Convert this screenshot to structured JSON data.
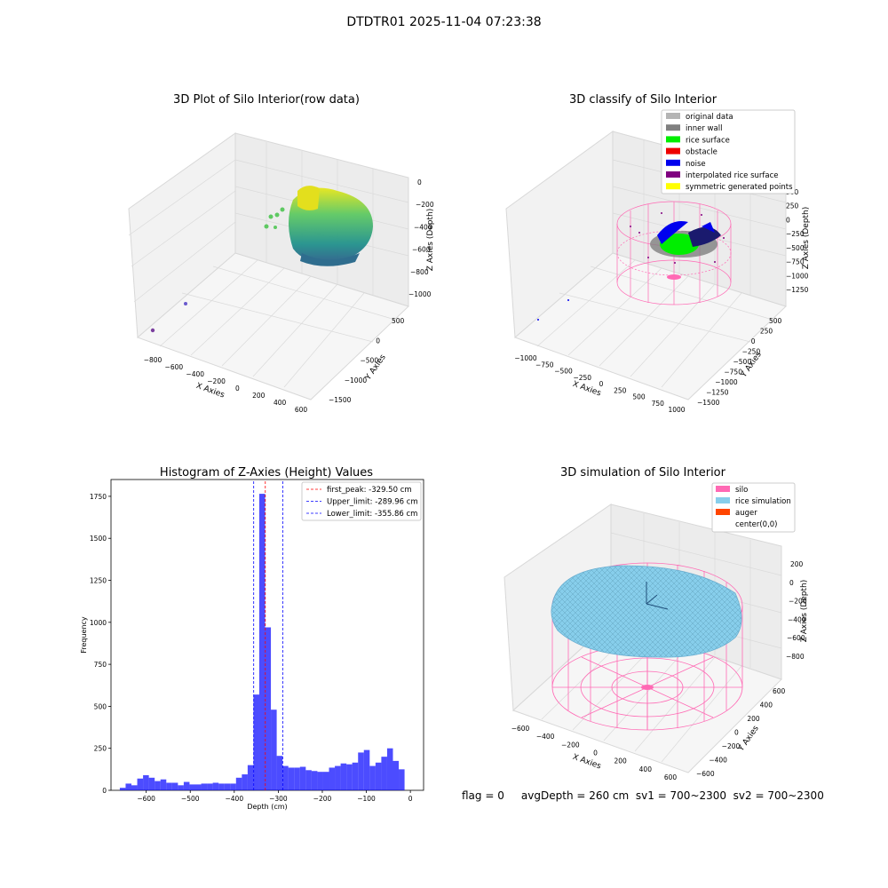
{
  "suptitle": "DTDTR01 2025-11-04 07:23:38",
  "status_text": "flag = 0     avgDepth = 260 cm  sv1 = 700~2300  sv2 = 700~2300",
  "panel_raw": {
    "title": "3D Plot of Silo Interior(row data)",
    "xlabel": "X Axies",
    "ylabel": "Y Axies",
    "zlabel": "Z Axies (Depth)",
    "xticks": [
      "−800",
      "−600",
      "−400",
      "−200",
      "0",
      "200",
      "400",
      "600"
    ],
    "yticks": [
      "500",
      "0",
      "−500",
      "−1000",
      "−1500"
    ],
    "zticks": [
      "0",
      "−200",
      "−400",
      "−600",
      "−800",
      "−1000"
    ]
  },
  "panel_classify": {
    "title": "3D classify of Silo Interior",
    "xlabel": "X Axies",
    "ylabel": "Y Axies",
    "zlabel": "Z Axies (Depth)",
    "xticks": [
      "−1000",
      "−750",
      "−500",
      "−250",
      "0",
      "250",
      "500",
      "750",
      "1000"
    ],
    "yticks": [
      "500",
      "250",
      "0",
      "−250",
      "−500",
      "−750",
      "−1000",
      "−1250",
      "−1500"
    ],
    "zticks": [
      "500",
      "250",
      "0",
      "−250",
      "−500",
      "−750",
      "−1000",
      "−1250"
    ],
    "legend": [
      {
        "label": "original data",
        "color": "#b4b4b4"
      },
      {
        "label": "inner wall",
        "color": "#808080"
      },
      {
        "label": "rice surface",
        "color": "#00ee00"
      },
      {
        "label": "obstacle",
        "color": "#ee0000"
      },
      {
        "label": "noise",
        "color": "#0000ee"
      },
      {
        "label": "interpolated rice surface",
        "color": "#800080"
      },
      {
        "label": "symmetric generated points",
        "color": "#ffff00"
      }
    ]
  },
  "panel_sim": {
    "title": "3D simulation of Silo Interior",
    "xlabel": "X Axies",
    "ylabel": "Y Axies",
    "zlabel": "Z Axies (Depth)",
    "xticks": [
      "−600",
      "−400",
      "−200",
      "0",
      "200",
      "400",
      "600"
    ],
    "yticks": [
      "600",
      "400",
      "200",
      "0",
      "−200",
      "−400",
      "−600"
    ],
    "zticks": [
      "200",
      "0",
      "−200",
      "−400",
      "−600",
      "−800"
    ],
    "legend": [
      {
        "label": "silo",
        "color": "#ff69b4"
      },
      {
        "label": "rice simulation",
        "color": "#87ceeb"
      },
      {
        "label": "auger",
        "color": "#ff4500"
      },
      {
        "label": "center(0,0)",
        "color": "none"
      }
    ]
  },
  "chart_data": {
    "type": "bar",
    "title": "Histogram of Z-Axies (Height) Values",
    "xlabel": "Depth (cm)",
    "ylabel": "Frequency",
    "xlim": [
      -680,
      30
    ],
    "ylim": [
      0,
      1850
    ],
    "xticks": [
      -600,
      -500,
      -400,
      -300,
      -200,
      -100,
      0
    ],
    "yticks": [
      0,
      250,
      500,
      750,
      1000,
      1250,
      1500,
      1750
    ],
    "bar_color": "#0000ff",
    "bin_edges_start": -660,
    "bin_width": 13.2,
    "values": [
      15,
      40,
      30,
      70,
      90,
      75,
      55,
      65,
      45,
      45,
      30,
      50,
      35,
      35,
      40,
      40,
      45,
      40,
      40,
      40,
      75,
      95,
      150,
      570,
      1765,
      970,
      480,
      205,
      145,
      135,
      135,
      140,
      120,
      115,
      110,
      110,
      135,
      145,
      160,
      155,
      165,
      225,
      240,
      145,
      165,
      200,
      250,
      175,
      125
    ],
    "lines": [
      {
        "label": "first_peak: -329.50 cm",
        "x": -329.5,
        "color": "#ff0000"
      },
      {
        "label": "Upper_limit: -289.96 cm",
        "x": -289.96,
        "color": "#0000ff"
      },
      {
        "label": "Lower_limit: -355.86 cm",
        "x": -355.86,
        "color": "#0000ff"
      }
    ]
  }
}
